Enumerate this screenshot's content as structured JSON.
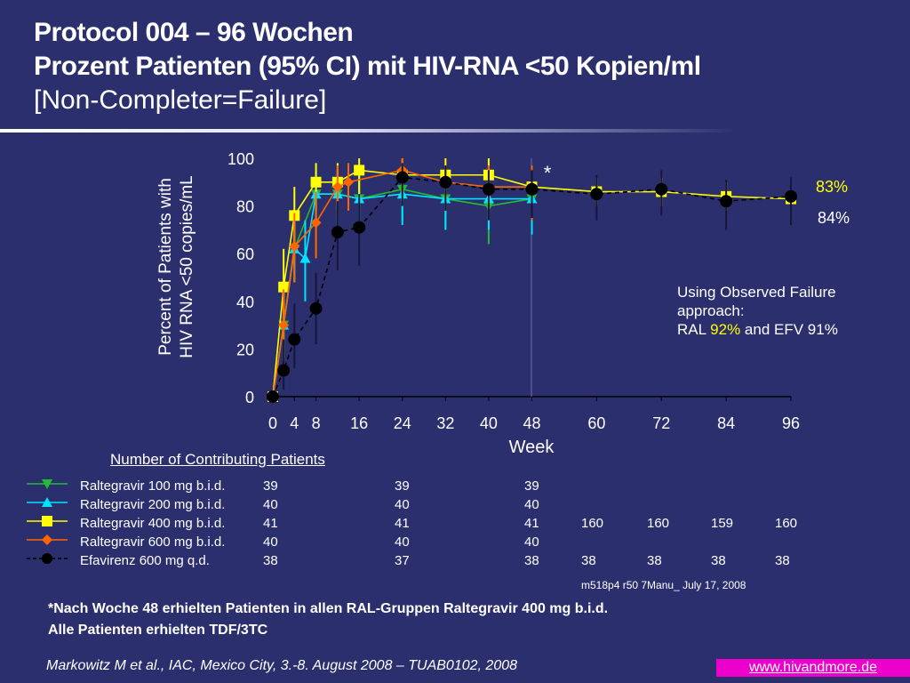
{
  "title": {
    "line1": "Protocol 004 – 96 Wochen",
    "line2": "Prozent Patienten (95% CI) mit HIV-RNA <50 Kopien/ml",
    "line3": "[Non-Completer=Failure]"
  },
  "colors": {
    "background": "#2b2f6e",
    "ral100": "#22bb33",
    "ral200": "#00e5ff",
    "ral400": "#ffff00",
    "ral600": "#ff6600",
    "efv": "#000000",
    "link_bg": "#ee00cc"
  },
  "chart_data": {
    "type": "line",
    "ylabel": "Percent of Patients with HIV RNA <50 copies/mL",
    "xlabel": "Week",
    "ylim": [
      0,
      100
    ],
    "xlim": [
      0,
      96
    ],
    "yticks": [
      0,
      20,
      40,
      60,
      80,
      100
    ],
    "xticks": [
      0,
      4,
      8,
      16,
      24,
      32,
      40,
      48,
      60,
      72,
      84,
      96
    ],
    "x": [
      0,
      2,
      4,
      6,
      8,
      12,
      16,
      24,
      32,
      40,
      48,
      60,
      72,
      84,
      96
    ],
    "series": [
      {
        "name": "Raltegravir 100 mg b.i.d.",
        "color": "#22bb33",
        "marker": "triangle-down",
        "dash": false,
        "x": [
          0,
          2,
          4,
          8,
          12,
          16,
          24,
          32,
          40,
          48
        ],
        "values": [
          0,
          30,
          62,
          85,
          85,
          83,
          87,
          83,
          80,
          83
        ],
        "ci_low": [
          0,
          15,
          48,
          72,
          72,
          70,
          74,
          70,
          64,
          70
        ],
        "ci_high": [
          0,
          45,
          76,
          95,
          95,
          93,
          97,
          93,
          92,
          93
        ]
      },
      {
        "name": "Raltegravir 200 mg b.i.d.",
        "color": "#00e5ff",
        "marker": "triangle-up",
        "dash": false,
        "x": [
          0,
          2,
          4,
          6,
          8,
          12,
          16,
          24,
          32,
          40,
          48
        ],
        "values": [
          0,
          30,
          62,
          58,
          85,
          85,
          83,
          85,
          83,
          83,
          83
        ],
        "ci_low": [
          0,
          15,
          48,
          40,
          72,
          72,
          70,
          72,
          70,
          70,
          68
        ],
        "ci_high": [
          0,
          45,
          76,
          74,
          95,
          95,
          93,
          97,
          93,
          93,
          93
        ]
      },
      {
        "name": "Raltegravir 400 mg b.i.d.",
        "color": "#ffff00",
        "marker": "square",
        "dash": false,
        "x": [
          0,
          2,
          4,
          8,
          12,
          16,
          24,
          32,
          40,
          48,
          60,
          72,
          84,
          96
        ],
        "values": [
          0,
          46,
          76,
          90,
          90,
          95,
          93,
          93,
          93,
          88,
          86,
          86,
          84,
          83
        ],
        "ci_low": [
          0,
          30,
          63,
          78,
          78,
          85,
          82,
          82,
          82,
          76,
          80,
          80,
          78,
          76
        ],
        "ci_high": [
          0,
          62,
          88,
          98,
          98,
          100,
          100,
          100,
          100,
          96,
          92,
          92,
          90,
          90
        ]
      },
      {
        "name": "Raltegravir 600 mg b.i.d.",
        "color": "#ff6600",
        "marker": "diamond",
        "dash": false,
        "x": [
          0,
          2,
          4,
          8,
          12,
          14,
          24,
          32,
          40,
          48
        ],
        "values": [
          0,
          30,
          63,
          73,
          88,
          90,
          95,
          90,
          88,
          88
        ],
        "ci_low": [
          0,
          15,
          48,
          58,
          75,
          78,
          85,
          78,
          75,
          74
        ],
        "ci_high": [
          0,
          45,
          77,
          86,
          97,
          98,
          100,
          97,
          97,
          97
        ]
      },
      {
        "name": "Efavirenz 600 mg q.d.",
        "color": "#000000",
        "marker": "circle",
        "dash": true,
        "x": [
          0,
          2,
          4,
          8,
          12,
          16,
          24,
          32,
          40,
          48,
          60,
          72,
          84,
          96
        ],
        "values": [
          0,
          11,
          24,
          37,
          69,
          71,
          92,
          90,
          87,
          87,
          85,
          87,
          82,
          84
        ],
        "ci_low": [
          0,
          3,
          12,
          22,
          53,
          55,
          80,
          78,
          74,
          75,
          74,
          76,
          70,
          72
        ],
        "ci_high": [
          0,
          24,
          39,
          52,
          82,
          85,
          98,
          97,
          95,
          95,
          93,
          95,
          91,
          92
        ]
      }
    ],
    "annotations": {
      "asterisk": "*",
      "ral_final": "83%",
      "efv_final": "84%"
    }
  },
  "note": {
    "line1": "Using Observed Failure",
    "line2": "approach:",
    "prefix": "RAL ",
    "ral_value": "92%",
    "middle": " and EFV 91",
    "suffix": "%"
  },
  "contributing": {
    "title": "Number of Contributing Patients",
    "rows": [
      {
        "label": "Raltegravir 100 mg b.i.d.",
        "c1": "39",
        "c2": "39",
        "c3": "39",
        "c4": "",
        "c5": "",
        "c6": "",
        "c7": ""
      },
      {
        "label": "Raltegravir 200 mg b.i.d.",
        "c1": "40",
        "c2": "40",
        "c3": "40",
        "c4": "",
        "c5": "",
        "c6": "",
        "c7": ""
      },
      {
        "label": "Raltegravir 400 mg b.i.d.",
        "c1": "41",
        "c2": "41",
        "c3": "41",
        "c4": "160",
        "c5": "160",
        "c6": "159",
        "c7": "160"
      },
      {
        "label": "Raltegravir 600 mg b.i.d.",
        "c1": "40",
        "c2": "40",
        "c3": "40",
        "c4": "",
        "c5": "",
        "c6": "",
        "c7": ""
      },
      {
        "label": "Efavirenz 600 mg q.d.",
        "c1": "38",
        "c2": "37",
        "c3": "38",
        "c4": "38",
        "c5": "38",
        "c6": "38",
        "c7": "38"
      }
    ]
  },
  "source_code": "m518p4 r50 7Manu_  July 17, 2008",
  "footnote": {
    "line1": "*Nach Woche 48 erhielten Patienten in allen RAL-Gruppen Raltegravir 400 mg b.i.d.",
    "line2": "Alle Patienten erhielten TDF/3TC"
  },
  "reference": "Markowitz M et al., IAC, Mexico City, 3.-8. August 2008 – TUAB0102, 2008",
  "link": "www.hivandmore.de"
}
